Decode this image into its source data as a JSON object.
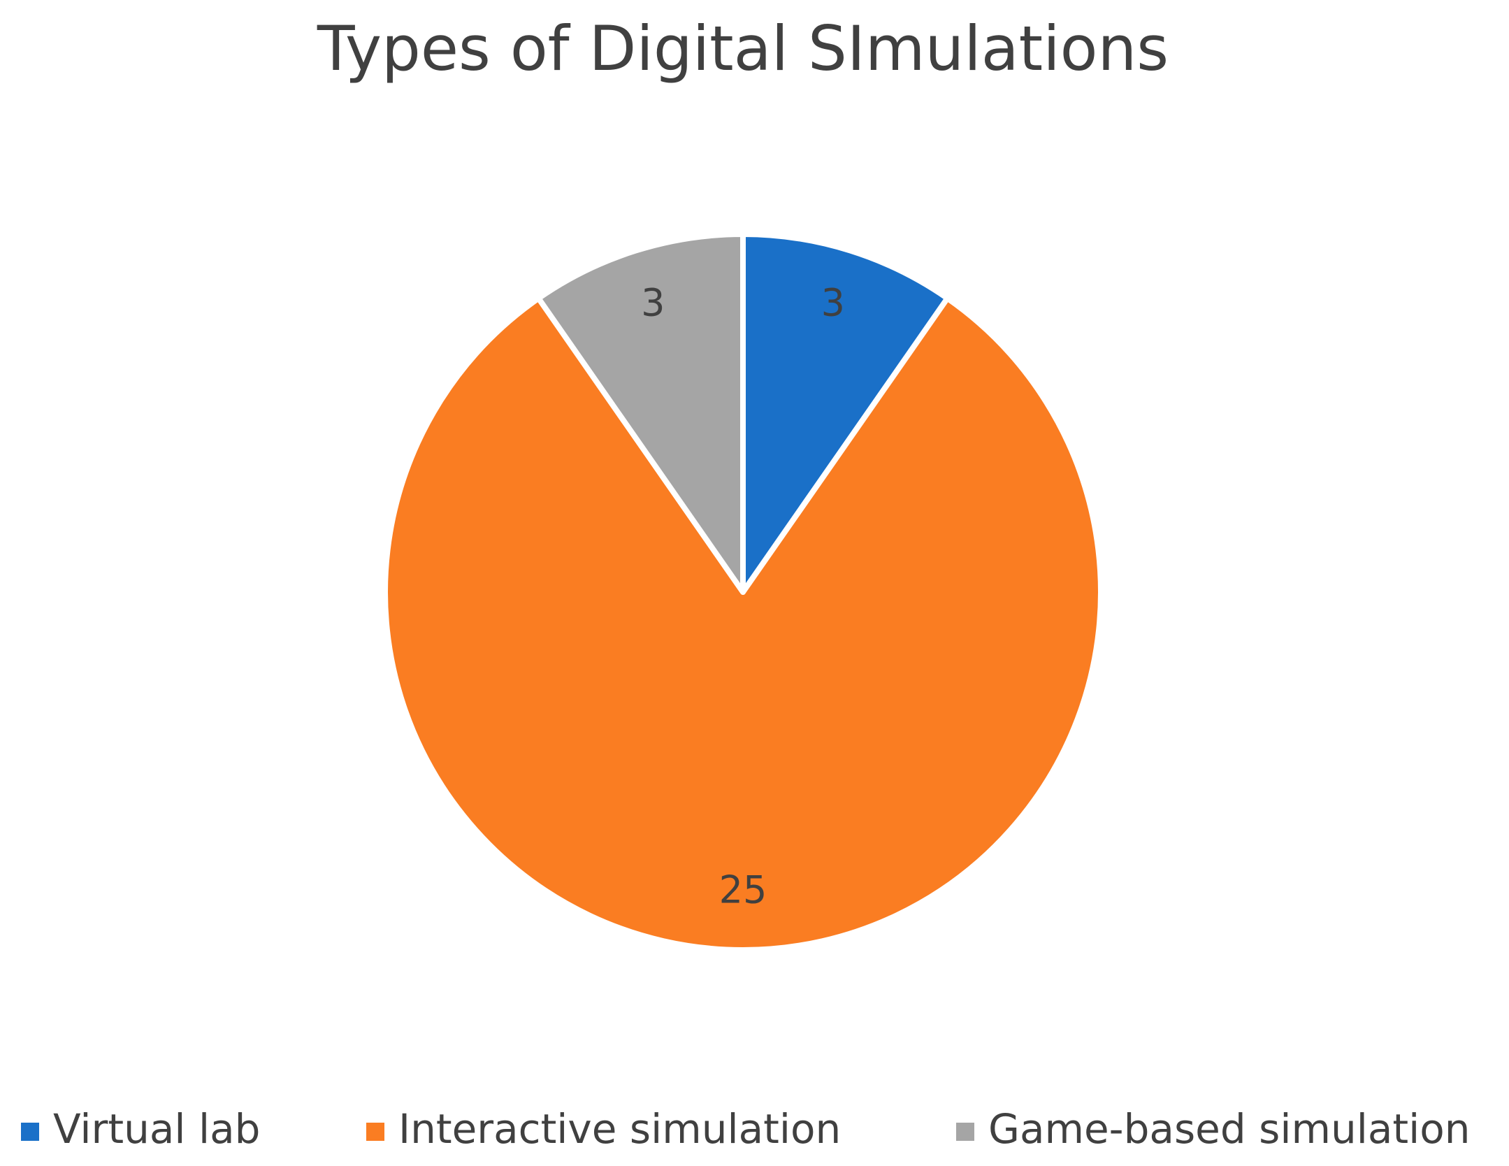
{
  "chart_data": {
    "type": "pie",
    "title": "Types of Digital SImulations",
    "categories": [
      "Virtual lab",
      "Interactive simulation",
      "Game-based simulation"
    ],
    "values": [
      3,
      25,
      3
    ],
    "colors": [
      "#1a70c8",
      "#fa7d22",
      "#a5a5a5"
    ],
    "legend": "bottom"
  }
}
